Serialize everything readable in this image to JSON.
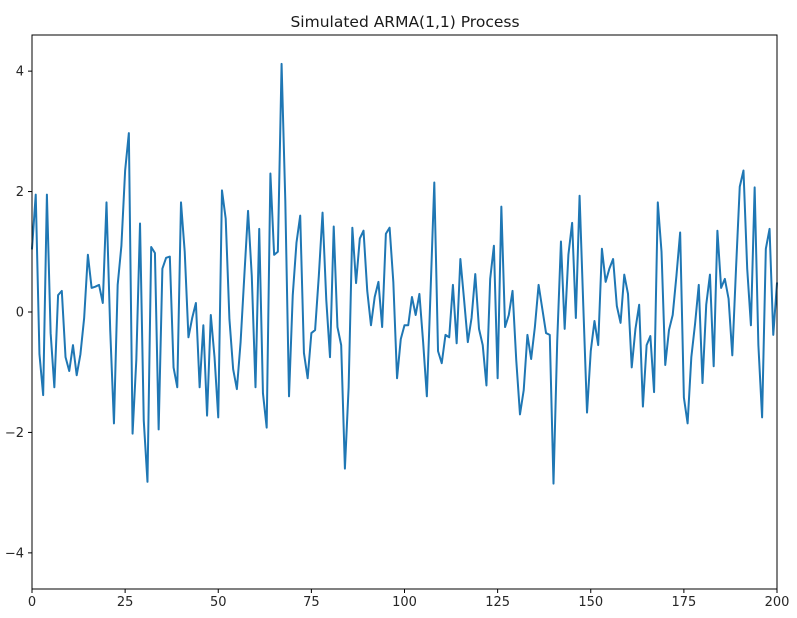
{
  "chart_data": {
    "type": "line",
    "title": "Simulated ARMA(1,1) Process",
    "xlabel": "",
    "ylabel": "",
    "xlim": [
      0,
      200
    ],
    "ylim": [
      -4.6,
      4.6
    ],
    "xticks": [
      0,
      25,
      50,
      75,
      100,
      125,
      150,
      175,
      200
    ],
    "yticks": [
      -4,
      -2,
      0,
      2,
      4
    ],
    "ytick_labels": [
      "−4",
      "−2",
      "0",
      "2",
      "4"
    ],
    "grid": false,
    "legend": "none",
    "series": [
      {
        "color": "#1f77b4",
        "x": [
          0,
          1,
          2,
          3,
          4,
          5,
          6,
          7,
          8,
          9,
          10,
          11,
          12,
          13,
          14,
          15,
          16,
          17,
          18,
          19,
          20,
          21,
          22,
          23,
          24,
          25,
          26,
          27,
          28,
          29,
          30,
          31,
          32,
          33,
          34,
          35,
          36,
          37,
          38,
          39,
          40,
          41,
          42,
          43,
          44,
          45,
          46,
          47,
          48,
          49,
          50,
          51,
          52,
          53,
          54,
          55,
          56,
          57,
          58,
          59,
          60,
          61,
          62,
          63,
          64,
          65,
          66,
          67,
          68,
          69,
          70,
          71,
          72,
          73,
          74,
          75,
          76,
          77,
          78,
          79,
          80,
          81,
          82,
          83,
          84,
          85,
          86,
          87,
          88,
          89,
          90,
          91,
          92,
          93,
          94,
          95,
          96,
          97,
          98,
          99,
          100,
          101,
          102,
          103,
          104,
          105,
          106,
          107,
          108,
          109,
          110,
          111,
          112,
          113,
          114,
          115,
          116,
          117,
          118,
          119,
          120,
          121,
          122,
          123,
          124,
          125,
          126,
          127,
          128,
          129,
          130,
          131,
          132,
          133,
          134,
          135,
          136,
          137,
          138,
          139,
          140,
          141,
          142,
          143,
          144,
          145,
          146,
          147,
          148,
          149,
          150,
          151,
          152,
          153,
          154,
          155,
          156,
          157,
          158,
          159,
          160,
          161,
          162,
          163,
          164,
          165,
          166,
          167,
          168,
          169,
          170,
          171,
          172,
          173,
          174,
          175,
          176,
          177,
          178,
          179,
          180,
          181,
          182,
          183,
          184,
          185,
          186,
          187,
          188,
          189,
          190,
          191,
          192,
          193,
          194,
          195,
          196,
          197,
          198,
          199,
          200
        ],
        "y": [
          1.05,
          1.95,
          -0.7,
          -1.38,
          1.95,
          -0.35,
          -1.25,
          0.28,
          0.35,
          -0.75,
          -0.98,
          -0.55,
          -1.05,
          -0.7,
          -0.1,
          0.95,
          0.4,
          0.42,
          0.45,
          0.15,
          1.82,
          -0.3,
          -1.85,
          0.45,
          1.1,
          2.35,
          2.97,
          -2.02,
          -0.8,
          1.47,
          -1.8,
          -2.82,
          1.08,
          0.98,
          -1.95,
          0.72,
          0.9,
          0.92,
          -0.92,
          -1.25,
          1.82,
          1.0,
          -0.42,
          -0.1,
          0.15,
          -1.25,
          -0.22,
          -1.72,
          -0.05,
          -0.75,
          -1.75,
          2.02,
          1.55,
          -0.12,
          -0.95,
          -1.28,
          -0.5,
          0.6,
          1.68,
          0.6,
          -1.25,
          1.38,
          -1.35,
          -1.92,
          2.3,
          0.95,
          1.0,
          4.12,
          1.85,
          -1.4,
          0.28,
          1.15,
          1.6,
          -0.68,
          -1.1,
          -0.35,
          -0.3,
          0.6,
          1.65,
          0.2,
          -0.75,
          1.42,
          -0.25,
          -0.55,
          -2.6,
          -1.25,
          1.4,
          0.48,
          1.22,
          1.35,
          0.35,
          -0.22,
          0.25,
          0.5,
          -0.25,
          1.3,
          1.4,
          0.5,
          -1.1,
          -0.45,
          -0.22,
          -0.22,
          0.25,
          -0.05,
          0.3,
          -0.5,
          -1.4,
          0.35,
          2.15,
          -0.65,
          -0.85,
          -0.38,
          -0.42,
          0.45,
          -0.52,
          0.88,
          0.2,
          -0.5,
          -0.1,
          0.63,
          -0.28,
          -0.55,
          -1.22,
          0.55,
          1.1,
          -1.1,
          1.75,
          -0.25,
          -0.05,
          0.35,
          -0.8,
          -1.7,
          -1.3,
          -0.38,
          -0.78,
          -0.25,
          0.45,
          0.05,
          -0.35,
          -0.38,
          -2.85,
          -0.48,
          1.17,
          -0.28,
          0.95,
          1.48,
          -0.1,
          1.93,
          0.1,
          -1.67,
          -0.65,
          -0.15,
          -0.55,
          1.05,
          0.5,
          0.72,
          0.88,
          0.1,
          -0.18,
          0.62,
          0.3,
          -0.92,
          -0.28,
          0.12,
          -1.57,
          -0.55,
          -0.4,
          -1.33,
          1.82,
          1.0,
          -0.88,
          -0.3,
          -0.05,
          0.6,
          1.32,
          -1.42,
          -1.85,
          -0.75,
          -0.2,
          0.45,
          -1.18,
          0.12,
          0.62,
          -0.9,
          1.35,
          0.4,
          0.55,
          0.22,
          -0.72,
          0.72,
          2.08,
          2.35,
          0.72,
          -0.22,
          2.07,
          -0.55,
          -1.75,
          1.05,
          1.38,
          -0.38,
          0.48
        ]
      }
    ]
  }
}
